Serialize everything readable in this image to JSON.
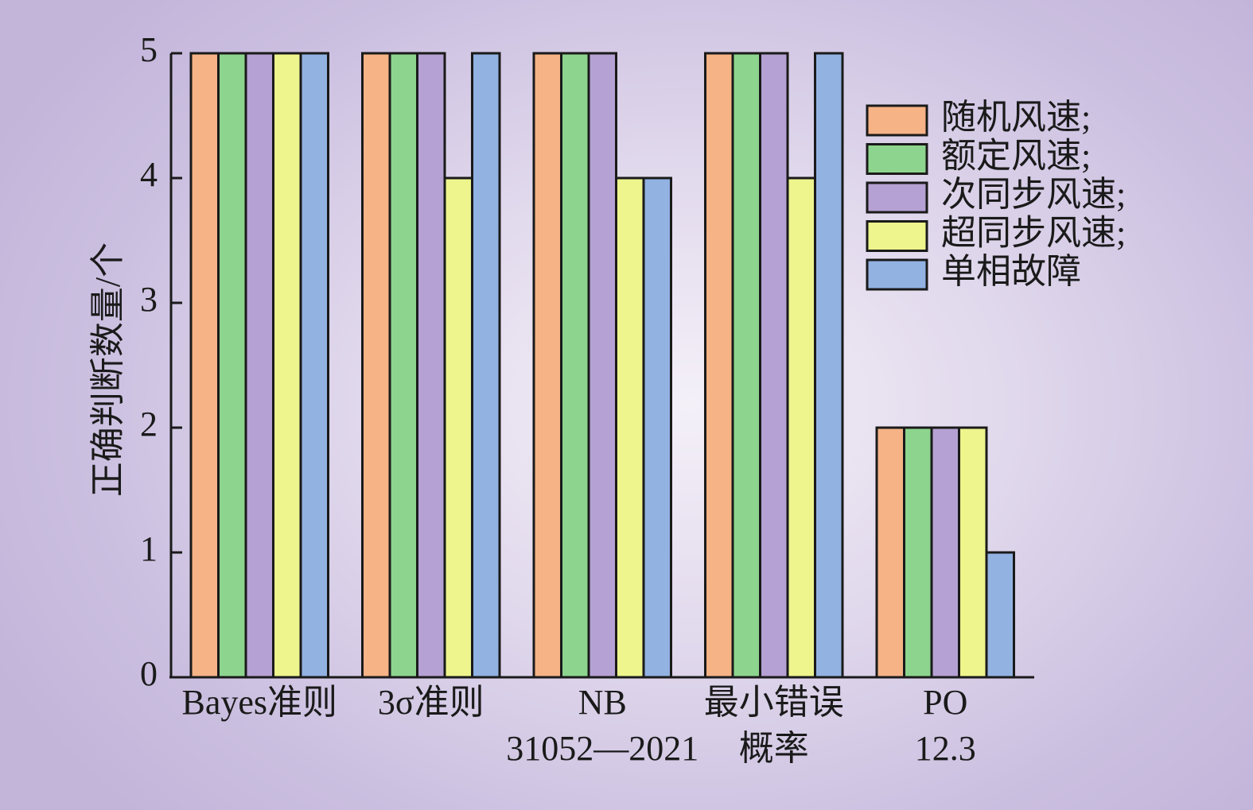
{
  "chart_data": {
    "type": "bar",
    "ylabel": "正确判断数量/个",
    "ylim": [
      0,
      5
    ],
    "yticks": [
      "0",
      "1",
      "2",
      "3",
      "4",
      "5"
    ],
    "grid": false,
    "legend_position": "top-right",
    "categories": [
      [
        "Bayes准则"
      ],
      [
        "3σ准则"
      ],
      [
        "NB",
        "31052—2021"
      ],
      [
        "最小错误",
        "概率"
      ],
      [
        "PO",
        "12.3"
      ]
    ],
    "series": [
      {
        "name": "随机风速;",
        "color": "#f5b386",
        "values": [
          5,
          5,
          5,
          5,
          2
        ]
      },
      {
        "name": "额定风速;",
        "color": "#8dd58e",
        "values": [
          5,
          5,
          5,
          5,
          2
        ]
      },
      {
        "name": "次同步风速;",
        "color": "#b5a1d3",
        "values": [
          5,
          5,
          5,
          5,
          2
        ]
      },
      {
        "name": "超同步风速;",
        "color": "#eef58d",
        "values": [
          5,
          4,
          4,
          4,
          2
        ]
      },
      {
        "name": "单相故障",
        "color": "#92b2e2",
        "values": [
          5,
          5,
          4,
          5,
          1
        ]
      }
    ]
  }
}
